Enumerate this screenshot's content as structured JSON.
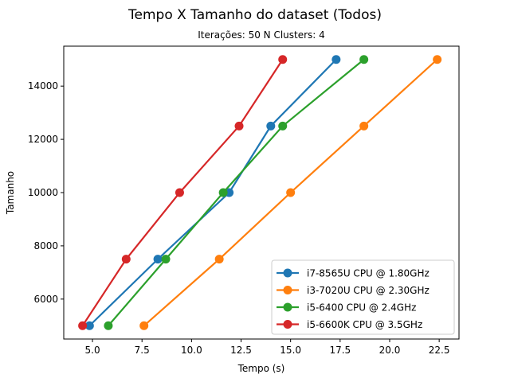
{
  "chart_data": {
    "type": "line",
    "title": "Tempo X Tamanho do dataset (Todos)",
    "subtitle": "Iterações: 50  N Clusters: 4",
    "xlabel": "Tempo (s)",
    "ylabel": "Tamanho",
    "xlim": [
      3.55,
      23.5
    ],
    "ylim": [
      4500,
      15500
    ],
    "xticks": [
      5.0,
      7.5,
      10.0,
      12.5,
      15.0,
      17.5,
      20.0,
      22.5
    ],
    "xtick_labels": [
      "5.0",
      "7.5",
      "10.0",
      "12.5",
      "15.0",
      "17.5",
      "20.0",
      "22.5"
    ],
    "yticks": [
      6000,
      8000,
      10000,
      12000,
      14000
    ],
    "ytick_labels": [
      "6000",
      "8000",
      "10000",
      "12000",
      "14000"
    ],
    "grid": false,
    "legend_position": "bottom-right",
    "series": [
      {
        "name": "i7-8565U CPU @ 1.80GHz",
        "color": "#1f77b4",
        "x": [
          4.85,
          8.3,
          11.9,
          14.0,
          17.3
        ],
        "y": [
          5000,
          7500,
          10000,
          12500,
          15000
        ]
      },
      {
        "name": "i3-7020U CPU @ 2.30GHz",
        "color": "#ff7f0e",
        "x": [
          7.6,
          11.4,
          15.0,
          18.7,
          22.4
        ],
        "y": [
          5000,
          7500,
          10000,
          12500,
          15000
        ]
      },
      {
        "name": "i5-6400 CPU @ 2.4GHz",
        "color": "#2ca02c",
        "x": [
          5.8,
          8.7,
          11.6,
          14.6,
          18.7
        ],
        "y": [
          5000,
          7500,
          10000,
          12500,
          15000
        ]
      },
      {
        "name": "i5-6600K CPU @ 3.5GHz",
        "color": "#d62728",
        "x": [
          4.5,
          6.7,
          9.4,
          12.4,
          14.6
        ],
        "y": [
          5000,
          7500,
          10000,
          12500,
          15000
        ]
      }
    ]
  }
}
